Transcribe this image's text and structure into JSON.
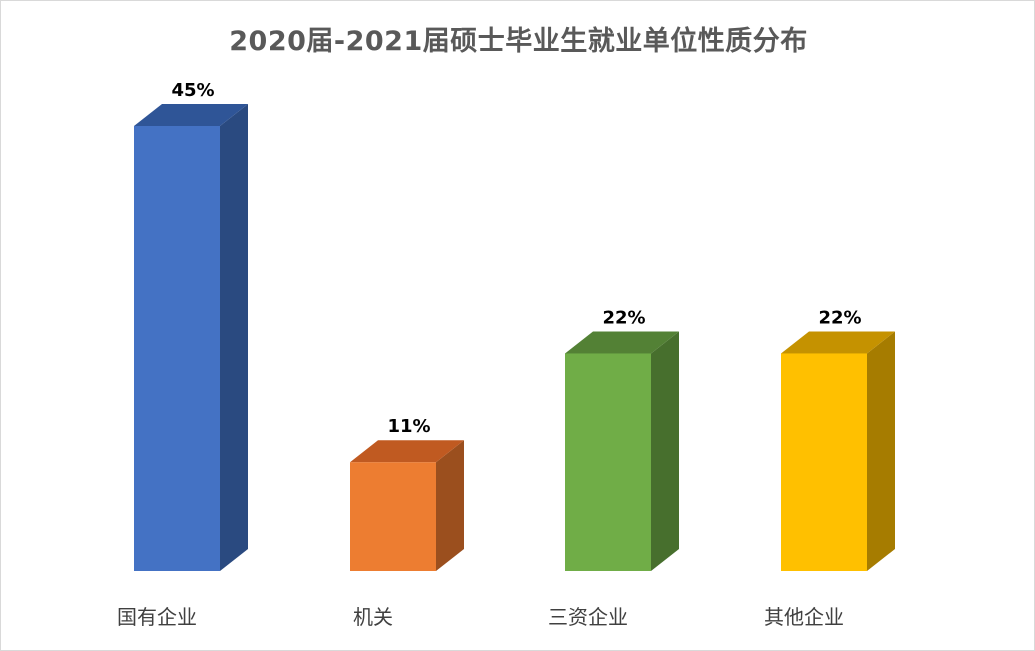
{
  "chart_data": {
    "type": "bar",
    "style": "3d-column",
    "title": "2020届-2021届硕士毕业生就业单位性质分布",
    "categories": [
      "国有企业",
      "机关",
      "三资企业",
      "其他企业"
    ],
    "values": [
      45,
      11,
      22,
      22
    ],
    "data_labels": [
      "45%",
      "11%",
      "22%",
      "22%"
    ],
    "unit": "%",
    "colors": {
      "front": [
        "#4472C4",
        "#ED7D31",
        "#70AD47",
        "#FFC000"
      ],
      "side": [
        "#2A4A80",
        "#9B4F1E",
        "#476F2D",
        "#A67C00"
      ],
      "top": [
        "#2F5597",
        "#C05A21",
        "#538135",
        "#C59200"
      ]
    },
    "xlabel": "",
    "ylabel": "",
    "ylim": [
      0,
      45
    ],
    "grid": false,
    "legend": "none"
  }
}
